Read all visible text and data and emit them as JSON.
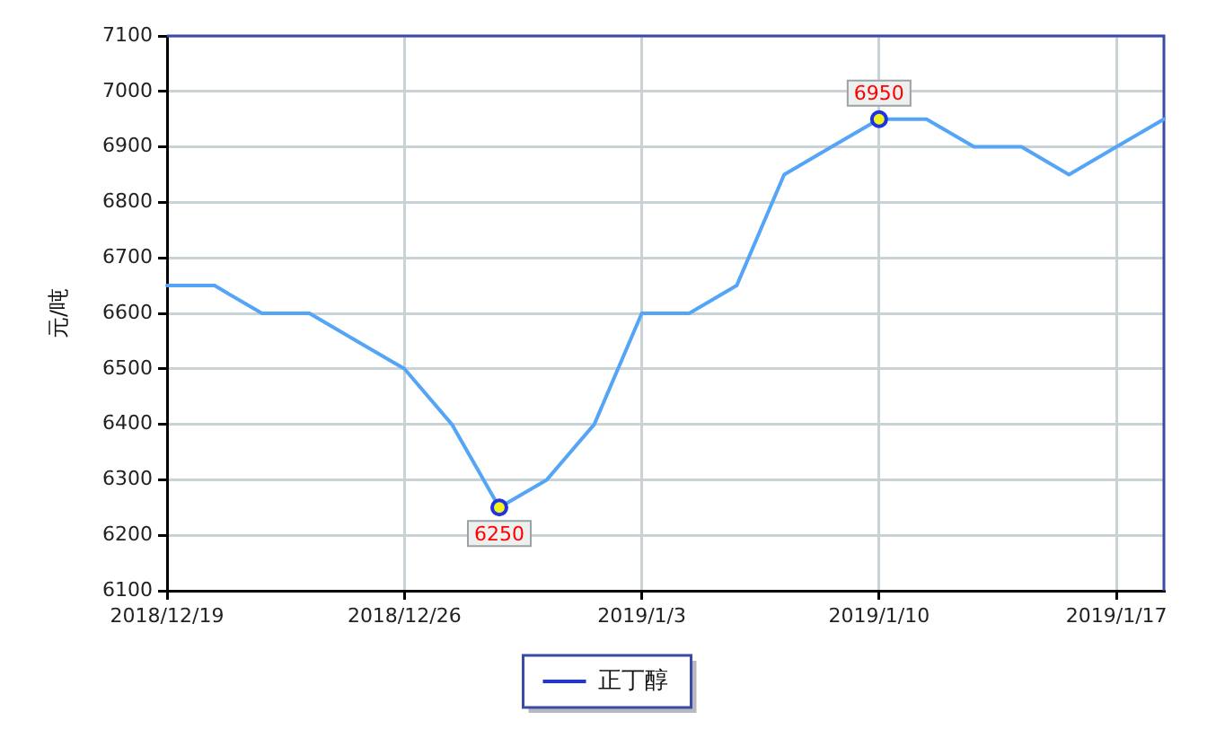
{
  "chart_data": {
    "type": "line",
    "ylabel": "元/吨",
    "categories": [
      "2018/12/19",
      null,
      null,
      null,
      null,
      "2018/12/26",
      null,
      null,
      null,
      null,
      "2019/1/3",
      null,
      null,
      null,
      null,
      "2019/1/10",
      null,
      null,
      null,
      null,
      "2019/1/17",
      null
    ],
    "series": [
      {
        "name": "正丁醇",
        "color": "#55a5f7",
        "values": [
          6650,
          6650,
          6600,
          6600,
          6550,
          6500,
          6400,
          6250,
          6300,
          6400,
          6600,
          6600,
          6650,
          6850,
          6900,
          6950,
          6950,
          6900,
          6900,
          6850,
          6900,
          6950
        ],
        "value_labels": [
          null,
          null,
          null,
          null,
          null,
          null,
          null,
          "6250",
          null,
          null,
          null,
          null,
          null,
          null,
          null,
          "6950",
          null,
          null,
          null,
          null,
          null,
          null
        ]
      }
    ],
    "ylim": [
      6100,
      7100
    ],
    "yticks": [
      6100,
      6200,
      6300,
      6400,
      6500,
      6600,
      6700,
      6800,
      6900,
      7000,
      7100
    ],
    "grid": true,
    "legend": "bottom"
  }
}
